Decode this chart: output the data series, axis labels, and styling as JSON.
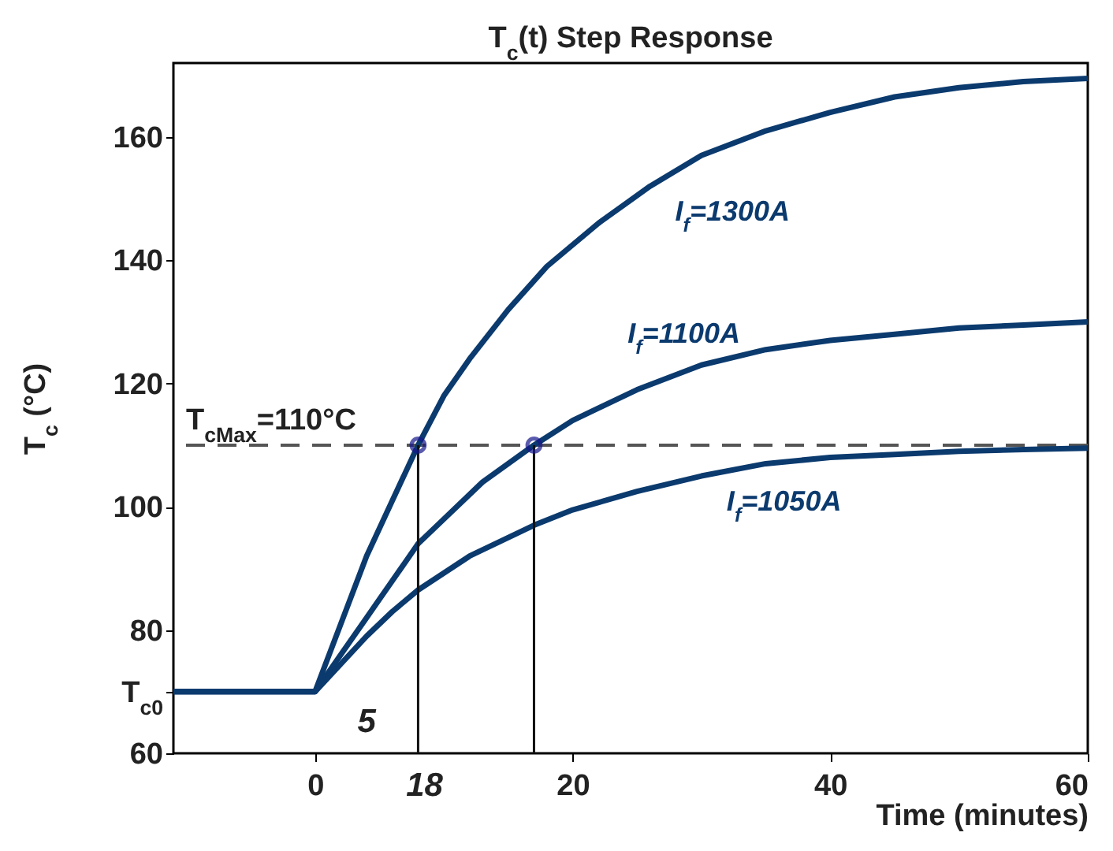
{
  "chart_data": {
    "type": "line",
    "title": "T$_{c}$(t) Step Response",
    "xlabel": "Time (minutes)",
    "ylabel": "T$_{c}$ (°C)",
    "xlim": [
      -11,
      60
    ],
    "xticks": [
      0,
      20,
      40,
      60
    ],
    "ylim": [
      60,
      172
    ],
    "yticks": [
      60,
      {
        "value": 70,
        "label": "T$_{c0}$"
      },
      80,
      100,
      120,
      140,
      160
    ],
    "grid": false,
    "line_style": "solid",
    "series": [
      {
        "name": "I$_{f}$=1300A",
        "color": "#0b3a6e",
        "x": [
          -11,
          0,
          2,
          4,
          6,
          8,
          10,
          12,
          15,
          18,
          22,
          26,
          30,
          35,
          40,
          45,
          50,
          55,
          60
        ],
        "values": [
          70,
          70,
          81,
          92,
          101,
          110,
          118,
          124,
          132,
          139,
          146,
          152,
          157,
          161,
          164,
          166.5,
          168,
          169,
          169.5
        ]
      },
      {
        "name": "I$_{f}$=1100A",
        "color": "#0b3a6e",
        "x": [
          -11,
          0,
          2,
          4,
          6,
          8,
          10,
          13,
          17,
          20,
          25,
          30,
          35,
          40,
          45,
          50,
          55,
          60
        ],
        "values": [
          70,
          70,
          76,
          82,
          88,
          94,
          98,
          104,
          110,
          114,
          119,
          123,
          125.5,
          127,
          128,
          129,
          129.5,
          130
        ]
      },
      {
        "name": "I$_{f}$=1050A",
        "color": "#0b3a6e",
        "x": [
          -11,
          0,
          2,
          4,
          6,
          8,
          12,
          17,
          20,
          25,
          30,
          35,
          40,
          45,
          50,
          55,
          60
        ],
        "values": [
          70,
          70,
          74.5,
          79,
          83,
          86.5,
          92,
          97,
          99.5,
          102.5,
          105,
          107,
          108,
          108.5,
          109,
          109.3,
          109.5
        ]
      },
      {
        "type": "line",
        "color": "#111111",
        "x": [
          8,
          8
        ],
        "values": [
          60,
          110
        ]
      },
      {
        "type": "line",
        "color": "#111111",
        "x": [
          17,
          17
        ],
        "values": [
          60,
          110
        ]
      },
      {
        "type": "scatter",
        "marker": "circle",
        "color": "#16168c",
        "x": [
          8,
          17
        ],
        "values": [
          110,
          110
        ]
      }
    ],
    "ref_lines": [
      {
        "axis": "y",
        "value": 110,
        "label": "T$_{cMax}$=110°C",
        "color": "#555555",
        "line_style": "dashed"
      }
    ],
    "annotations": [
      "5",
      "18"
    ]
  }
}
